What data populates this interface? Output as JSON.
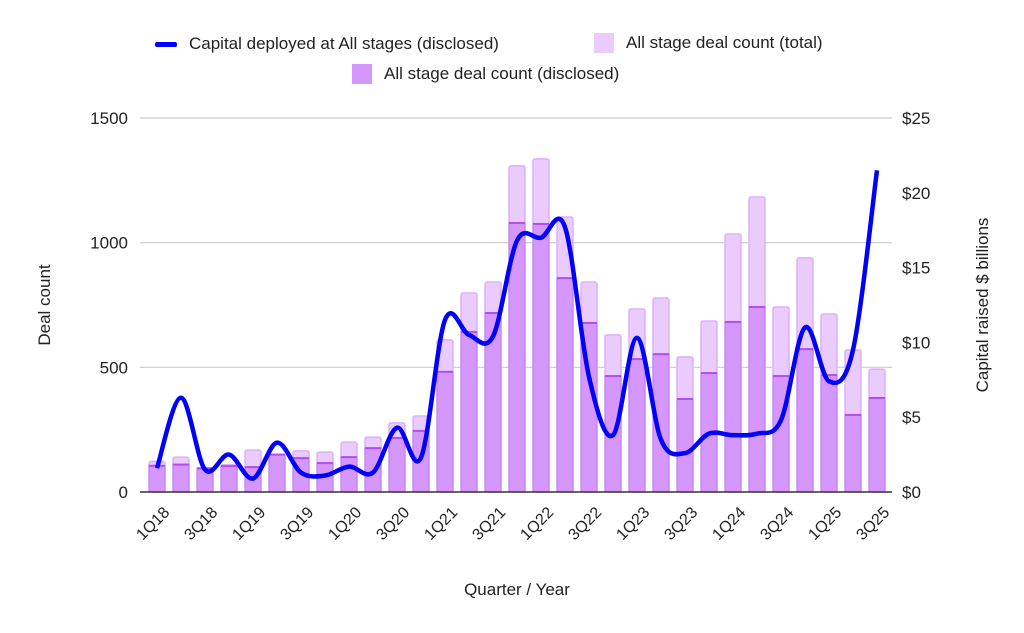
{
  "chart_data": {
    "type": "bar+line",
    "xlabel": "Quarter / Year",
    "ylabel_left": "Deal count",
    "ylabel_right": "Capital raised $ billions",
    "ylim_left": [
      0,
      1500
    ],
    "ylim_right": [
      0,
      25
    ],
    "yticks_left": [
      "0",
      "500",
      "1000",
      "1500"
    ],
    "yticks_right": [
      "$0",
      "$5",
      "$10",
      "$15",
      "$20",
      "$25"
    ],
    "grid": true,
    "legend_position": "top",
    "categories": [
      "1Q18",
      "2Q18",
      "3Q18",
      "4Q18",
      "1Q19",
      "2Q19",
      "3Q19",
      "4Q19",
      "1Q20",
      "2Q20",
      "3Q20",
      "4Q20",
      "1Q21",
      "2Q21",
      "3Q21",
      "4Q21",
      "1Q22",
      "2Q22",
      "3Q22",
      "4Q22",
      "1Q23",
      "2Q23",
      "3Q23",
      "4Q23",
      "1Q24",
      "2Q24",
      "3Q24",
      "4Q24",
      "1Q25",
      "2Q25",
      "3Q25"
    ],
    "tick_labels": [
      "1Q18",
      "3Q18",
      "1Q19",
      "3Q19",
      "1Q20",
      "3Q20",
      "1Q21",
      "3Q21",
      "1Q22",
      "3Q22",
      "1Q23",
      "3Q23",
      "1Q24",
      "3Q24",
      "1Q25",
      "3Q25"
    ],
    "series": [
      {
        "name": "All stage deal count (total)",
        "type": "bar",
        "axis": "left",
        "color": "#e9cbfd",
        "values": [
          123,
          140,
          97,
          110,
          168,
          150,
          165,
          160,
          200,
          220,
          277,
          305,
          610,
          798,
          842,
          1308,
          1336,
          1103,
          842,
          630,
          734,
          778,
          542,
          686,
          1035,
          1183,
          742,
          939,
          714,
          570,
          493
        ]
      },
      {
        "name": "All stage deal count (disclosed)",
        "type": "bar",
        "axis": "left",
        "color": "#d597fc",
        "values": [
          105,
          110,
          95,
          104,
          100,
          150,
          136,
          116,
          140,
          176,
          217,
          245,
          482,
          642,
          718,
          1079,
          1075,
          858,
          678,
          465,
          533,
          553,
          373,
          477,
          682,
          742,
          465,
          573,
          469,
          309,
          377
        ]
      },
      {
        "name": "Capital deployed at All stages (disclosed)",
        "type": "line",
        "axis": "right",
        "color": "#0000ff",
        "values": [
          1.6,
          6.3,
          1.5,
          2.5,
          0.9,
          3.3,
          1.3,
          1.1,
          1.7,
          1.3,
          4.3,
          2.3,
          11.5,
          10.5,
          10.4,
          16.8,
          17.0,
          17.7,
          7.7,
          3.8,
          10.3,
          3.5,
          2.6,
          3.9,
          3.8,
          3.9,
          4.8,
          11.0,
          7.4,
          9.5,
          21.5
        ]
      }
    ]
  }
}
